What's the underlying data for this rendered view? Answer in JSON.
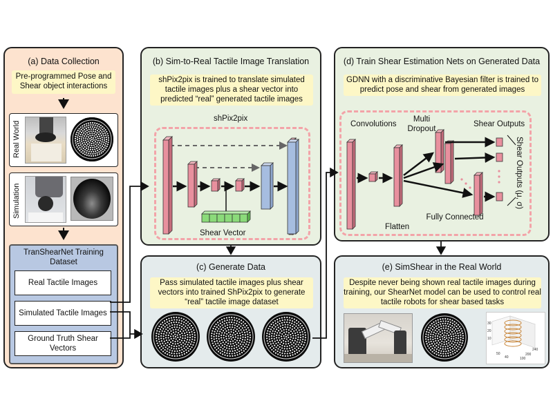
{
  "panel_a": {
    "title": "(a) Data Collection",
    "note": "Pre-programmed Pose and Shear object interactions",
    "real_world_label": "Real World",
    "simulation_label": "Simulation",
    "dataset_title": "TranShearNet Training Dataset",
    "items": [
      "Real Tactile Images",
      "Simulated Tactile Images",
      "Ground Truth Shear Vectors"
    ]
  },
  "panel_b": {
    "title": "(b) Sim-to-Real Tactile Image Translation",
    "note": "shPix2pix is trained to translate simulated tactile images plus a shear vector into predicted “real” generated tactile images",
    "model_label": "shPix2pix",
    "shear_vector_label": "Shear Vector"
  },
  "panel_c": {
    "title": "(c) Generate Data",
    "note": "Pass simulated tactile images plus shear vectors into trained ShPix2pix to generate “real” tactile image dataset"
  },
  "panel_d": {
    "title": "(d) Train Shear Estimation Nets on Generated Data",
    "note": "GDNN with a discriminative Bayesian filter is trained to predict pose and shear from generated images",
    "convolutions_label": "Convolutions",
    "dropout_label": "Multi Dropout",
    "shear_outputs_label": "Shear Outputs",
    "flatten_label": "Flatten",
    "fully_connected_label": "Fully Connected",
    "side_label": "Shear Outputs (μ, σ)"
  },
  "panel_e": {
    "title": "(e) SimShear in the Real World",
    "note": "Despite never being shown real tactile images during training, our ShearNet model can be used to control real tactile robots for shear based tasks",
    "plot_ticks": [
      "10",
      "20",
      "30",
      "40",
      "50",
      "100",
      "200",
      "240"
    ]
  },
  "colors": {
    "panel_a_bg": "#fde3cf",
    "panel_b_bg": "#e9f1e1",
    "panel_c_bg": "#e4ebec",
    "panel_d_bg": "#e9f1e1",
    "panel_e_bg": "#e4ebec",
    "dataset_bg": "#b8c8e2",
    "note_bg": "#fdf7c6",
    "layer_pink": "#e8909e",
    "layer_blue": "#a6bde0",
    "shear_green": "#8bdb7a",
    "dashed_border": "#f3a3a8"
  }
}
